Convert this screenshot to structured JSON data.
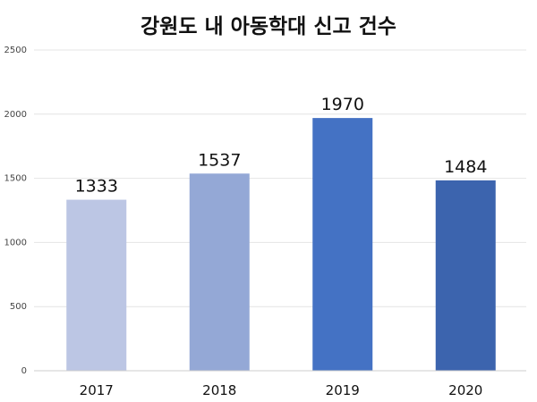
{
  "chart_data": {
    "type": "bar",
    "title": "강원도 내 아동학대 신고 건수",
    "categories": [
      "2017",
      "2018",
      "2019",
      "2020"
    ],
    "values": [
      1333,
      1537,
      1970,
      1484
    ],
    "data_labels": [
      "1333",
      "1537",
      "1970",
      "1484"
    ],
    "colors": [
      "#bcc6e4",
      "#94a8d6",
      "#4472c4",
      "#3c64ae"
    ],
    "xlabel": "",
    "ylabel": "",
    "ylim": [
      0,
      2500
    ],
    "yticks": [
      0,
      500,
      1000,
      1500,
      2000,
      2500
    ],
    "ytick_labels": [
      "0",
      "500",
      "1000",
      "1500",
      "2000",
      "2500"
    ],
    "grid": true,
    "legend": "none"
  }
}
